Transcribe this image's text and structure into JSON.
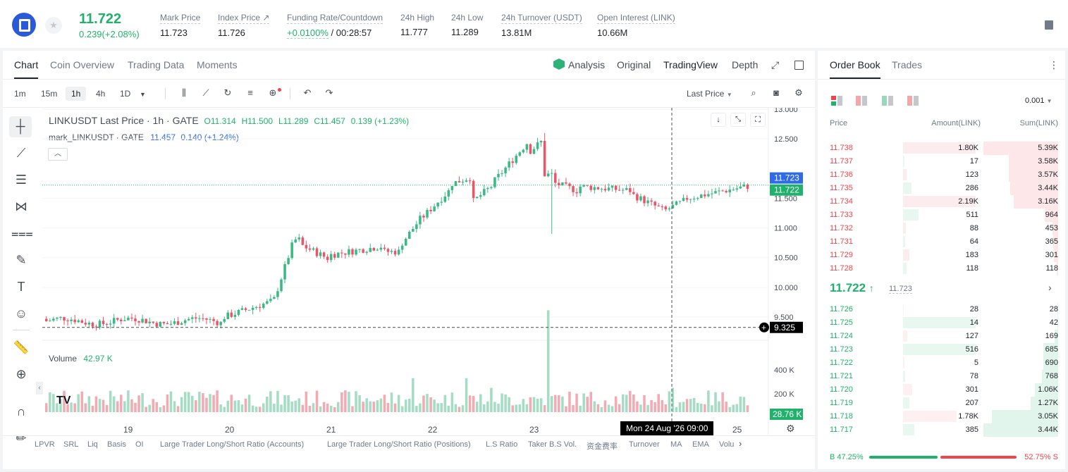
{
  "ticker": {
    "price": "11.722",
    "change": "0.239(+2.08%)"
  },
  "stats": [
    {
      "label": "Mark Price",
      "value": "11.723"
    },
    {
      "label": "Index Price ↗",
      "value": "11.726"
    },
    {
      "label": "Funding Rate/Countdown",
      "value_rate": "+0.0100%",
      "value_time": "/ 00:28:57"
    },
    {
      "label": "24h High",
      "value": "11.777"
    },
    {
      "label": "24h Low",
      "value": "11.289"
    },
    {
      "label": "24h Turnover (USDT)",
      "value": "13.81M"
    },
    {
      "label": "Open Interest (LINK)",
      "value": "10.66M"
    }
  ],
  "chart_tabs": [
    "Chart",
    "Coin Overview",
    "Trading Data",
    "Moments"
  ],
  "chart_views": {
    "analysis": "Analysis",
    "original": "Original",
    "tradingview": "TradingView",
    "depth": "Depth"
  },
  "timeframes": [
    "1m",
    "15m",
    "1h",
    "4h",
    "1D"
  ],
  "price_type": "Last Price",
  "legend": {
    "main": "LINKUSDT Last Price · 1h · GATE",
    "o": "O11.314",
    "h": "H11.500",
    "l": "L11.289",
    "c": "C11.457",
    "chg": "0.139 (+1.23%)",
    "mark_name": "mark_LINKUSDT · GATE",
    "mark_val": "11.457",
    "mark_chg": "0.140 (+1.24%)",
    "volume_label": "Volume",
    "volume_val": "42.97 K"
  },
  "price_axis": [
    "13.000",
    "12.500",
    "11.500",
    "11.000",
    "10.500",
    "10.000",
    "9.500"
  ],
  "price_tags": {
    "mark": "11.723",
    "last": "11.722",
    "cross": "9.325"
  },
  "vol_axis": [
    "400 K",
    "200 K"
  ],
  "vol_tag": "28.76 K",
  "date_axis": [
    "19",
    "20",
    "21",
    "22",
    "23",
    "25"
  ],
  "crosshair_date": "Mon 24 Aug '26  09:00",
  "indicators": [
    "LPVR",
    "SRL",
    "Liq",
    "Basis",
    "OI",
    "Large Trader Long/Short Ratio (Accounts)",
    "Large Trader Long/Short Ratio (Positions)",
    "L.S Ratio",
    "Taker B.S Vol.",
    "资金费率",
    "Turnover",
    "MA",
    "EMA",
    "Volu"
  ],
  "ob_tabs": [
    "Order Book",
    "Trades"
  ],
  "ob_precision": "0.001",
  "ob_headers": {
    "price": "Price",
    "amount": "Amount(LINK)",
    "sum": "Sum(LINK)"
  },
  "asks": [
    {
      "p": "11.738",
      "a": "1.80K",
      "s": "5.39K"
    },
    {
      "p": "11.737",
      "a": "17",
      "s": "3.58K"
    },
    {
      "p": "11.736",
      "a": "123",
      "s": "3.57K"
    },
    {
      "p": "11.735",
      "a": "286",
      "s": "3.44K"
    },
    {
      "p": "11.734",
      "a": "2.19K",
      "s": "3.16K"
    },
    {
      "p": "11.733",
      "a": "511",
      "s": "964"
    },
    {
      "p": "11.732",
      "a": "88",
      "s": "453"
    },
    {
      "p": "11.731",
      "a": "64",
      "s": "365"
    },
    {
      "p": "11.729",
      "a": "183",
      "s": "301"
    },
    {
      "p": "11.728",
      "a": "118",
      "s": "118"
    }
  ],
  "ask_depth": [
    1,
    0.66,
    0.66,
    0.64,
    0.59,
    0.18,
    0.08,
    0.07,
    0.06,
    0.02
  ],
  "ask_amt": [
    0.95,
    0.02,
    0.05,
    0.11,
    0.95,
    0.2,
    0.04,
    0.03,
    0.08,
    0.05
  ],
  "mid": {
    "price": "11.722",
    "mark": "11.723"
  },
  "bids": [
    {
      "p": "11.726",
      "a": "28",
      "s": "28"
    },
    {
      "p": "11.725",
      "a": "14",
      "s": "42"
    },
    {
      "p": "11.724",
      "a": "127",
      "s": "169"
    },
    {
      "p": "11.723",
      "a": "516",
      "s": "685"
    },
    {
      "p": "11.722",
      "a": "5",
      "s": "690"
    },
    {
      "p": "11.721",
      "a": "78",
      "s": "768"
    },
    {
      "p": "11.720",
      "a": "301",
      "s": "1.06K"
    },
    {
      "p": "11.719",
      "a": "207",
      "s": "1.27K"
    },
    {
      "p": "11.718",
      "a": "1.78K",
      "s": "3.05K"
    },
    {
      "p": "11.717",
      "a": "385",
      "s": "3.44K"
    }
  ],
  "bid_depth": [
    0.01,
    0.01,
    0.05,
    0.2,
    0.2,
    0.22,
    0.31,
    0.37,
    0.89,
    1
  ],
  "bid_amt": [
    0.01,
    0.95,
    0.06,
    0.95,
    0.02,
    0.03,
    0.12,
    0.08,
    0.7,
    0.15
  ],
  "ratio": {
    "buy": "B 47.25%",
    "sell": "52.75% S",
    "buy_pct": 47.25
  },
  "colors": {
    "up": "#20b26c",
    "down": "#ef454a",
    "upCandle": "#3bb985",
    "downCandle": "#e9566a",
    "blueTag": "#2f6be8"
  }
}
